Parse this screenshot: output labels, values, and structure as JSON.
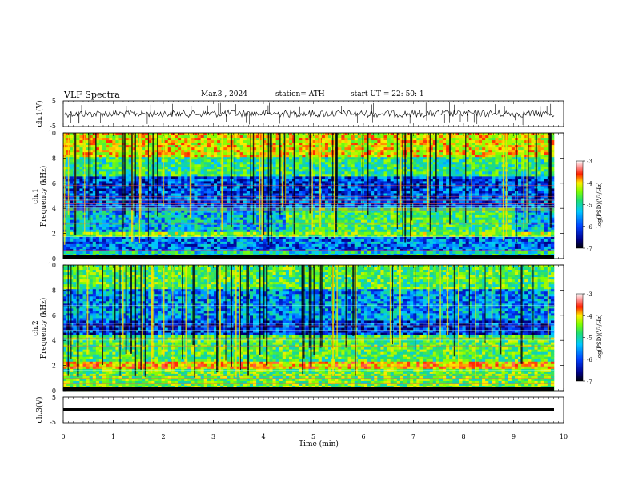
{
  "header": {
    "title": "VLF  Spectra",
    "date": "Mar.3  , 2024",
    "station": "station= ATH",
    "start": "start  UT  =    22: 50: 1"
  },
  "chart_data": [
    {
      "type": "line",
      "name": "ch1-waveform",
      "ylabel": "ch.1(V)",
      "ylim": [
        -5,
        5
      ],
      "yticks": [
        "5",
        "-5"
      ],
      "xlim": [
        0,
        10
      ]
    },
    {
      "type": "heatmap",
      "name": "ch1-spectrogram",
      "ylabel_channel": "ch.1",
      "ylabel": "Frequency  (kHz)",
      "ylim": [
        0,
        10
      ],
      "yticks": [
        "10",
        "8",
        "6",
        "4",
        "2",
        "0"
      ],
      "xlim": [
        0,
        10
      ],
      "colorbar": {
        "label": "log(PSD)(V²/Hz)",
        "ticks": [
          "-3",
          "-4",
          "-5",
          "-6",
          "-7"
        ],
        "range": [
          -7,
          -3
        ]
      }
    },
    {
      "type": "heatmap",
      "name": "ch2-spectrogram",
      "ylabel_channel": "ch.2",
      "ylabel": "Frequency  (kHz)",
      "ylim": [
        0,
        10
      ],
      "yticks": [
        "10",
        "8",
        "6",
        "4",
        "2",
        "0"
      ],
      "xlim": [
        0,
        10
      ],
      "colorbar": {
        "label": "log(PSD)(V²/Hz)",
        "ticks": [
          "-3",
          "-4",
          "-5",
          "-6",
          "-7"
        ],
        "range": [
          -7,
          -3
        ]
      }
    },
    {
      "type": "line",
      "name": "ch3-waveform",
      "ylabel": "ch.3(V)",
      "ylim": [
        -5,
        5
      ],
      "yticks": [
        "5",
        "-5"
      ],
      "xlim": [
        0,
        10
      ],
      "xlabel": "Time  (min)",
      "xticks": [
        "0",
        "1",
        "2",
        "3",
        "4",
        "5",
        "6",
        "7",
        "8",
        "9",
        "10"
      ]
    }
  ]
}
